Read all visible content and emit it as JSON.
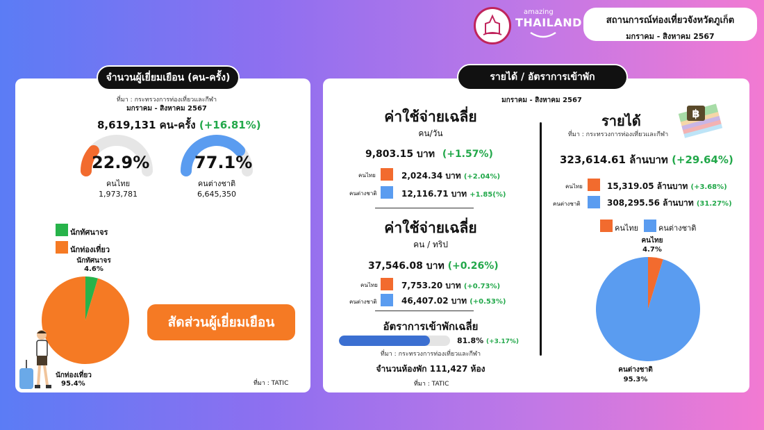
{
  "header": {
    "title": "สถานการณ์ท่องเที่ยวจังหวัดภูเก็ต",
    "subtitle": "มกราคม - สิงหาคม 2567",
    "brand_small": "amazing",
    "brand_big": "THAILAND"
  },
  "left": {
    "title": "จำนวนผู้เยี่ยมเยือน (คน-ครั้ง)",
    "source": "ที่มา : กระทรวงการท่องเที่ยวและกีฬา",
    "period": "มกราคม - สิงหาคม 2567",
    "total": "8,619,131 คน-ครั้ง",
    "total_change": "(+16.81%)",
    "thai": {
      "pct_label": "22.9%",
      "label": "คนไทย",
      "count": "1,973,781"
    },
    "foreign": {
      "pct_label": "77.1%",
      "label": "คนต่างชาติ",
      "count": "6,645,350"
    },
    "legend": [
      "นักทัศนาจร",
      "นักท่องเที่ยว"
    ],
    "pie_labels": {
      "excursionist": "นักทัศนาจร",
      "excursionist_pct": "4.6%",
      "tourist": "นักท่องเที่ยว",
      "tourist_pct": "95.4%"
    },
    "ratio_button": "สัดส่วนผู้เยี่ยมเยือน",
    "footer_source": "ที่มา : TATIC"
  },
  "right": {
    "title": "รายได้ / อัตราการเข้าพัก",
    "period": "มกราคม - สิงหาคม 2567",
    "per_day": {
      "heading": "ค่าใช้จ่ายเฉลี่ย",
      "unit": "คน/วัน",
      "total": "9,803.15 บาท",
      "total_change": "(+1.57%)",
      "thai_label": "คนไทย",
      "thai_value": "2,024.34 บาท",
      "thai_change": "(+2.04%)",
      "foreign_label": "คนต่างชาติ",
      "foreign_value": "12,116.71 บาท",
      "foreign_change": "+1.85(%)"
    },
    "per_trip": {
      "heading": "ค่าใช้จ่ายเฉลี่ย",
      "unit": "คน / ทริป",
      "total": "37,546.08 บาท",
      "total_change": "(+0.26%)",
      "thai_label": "คนไทย",
      "thai_value": "7,753.20 บาท",
      "thai_change": "(+0.73%)",
      "foreign_label": "คนต่างชาติ",
      "foreign_value": "46,407.02 บาท",
      "foreign_change": "(+0.53%)"
    },
    "occupancy": {
      "heading": "อัตราการเข้าพักเฉลี่ย",
      "value_label": "81.8%",
      "change": "(+3.17%)",
      "source": "ที่มา : กระทรวงการท่องเที่ยวและกีฬา",
      "rooms": "จำนวนห้องพัก 111,427 ห้อง",
      "footer_source": "ที่มา : TATIC"
    },
    "revenue": {
      "heading": "รายได้",
      "source": "ที่มา : กระทรวงการท่องเที่ยวและกีฬา",
      "total": "323,614.61 ล้านบาท",
      "total_change": "(+29.64%)",
      "thai_label": "คนไทย",
      "thai_value": "15,319.05 ล้านบาท",
      "thai_change": "(+3.68%)",
      "foreign_label": "คนต่างชาติ",
      "foreign_value": "308,295.56 ล้านบาท",
      "foreign_change": "(31.27%)",
      "legend": [
        "คนไทย",
        "คนต่างชาติ"
      ],
      "pie_thai_label": "คนไทย",
      "pie_thai_pct": "4.7%",
      "pie_foreign_label": "คนต่างชาติ",
      "pie_foreign_pct": "95.3%"
    }
  },
  "chart_data": [
    {
      "type": "pie",
      "categories": [
        "คนไทย",
        "คนต่างชาติ"
      ],
      "values": [
        22.9,
        77.1
      ],
      "colors": [
        "#f26b2e",
        "#5a9cf0"
      ]
    },
    {
      "type": "pie",
      "categories": [
        "นักทัศนาจร",
        "นักท่องเที่ยว"
      ],
      "values": [
        4.6,
        95.4
      ],
      "colors": [
        "#27b34a",
        "#f57a24"
      ]
    },
    {
      "type": "bar",
      "categories": [
        "อัตราการเข้าพักเฉลี่ย"
      ],
      "values": [
        81.8
      ],
      "ylim": [
        0,
        100
      ],
      "colors": [
        "#3b6fd1"
      ]
    },
    {
      "type": "pie",
      "categories": [
        "คนไทย",
        "คนต่างชาติ"
      ],
      "values": [
        4.7,
        95.3
      ],
      "colors": [
        "#f26b2e",
        "#5a9cf0"
      ]
    }
  ]
}
